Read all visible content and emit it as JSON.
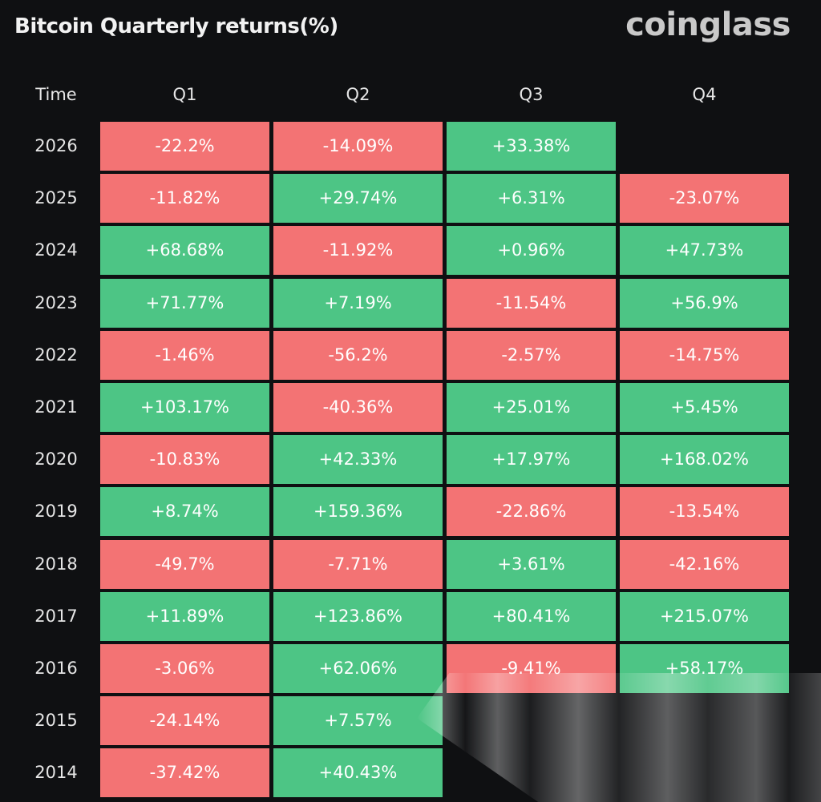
{
  "header": {
    "title": "Bitcoin Quarterly returns(%)",
    "brand": "coinglass"
  },
  "colors": {
    "positive": "#4dc585",
    "negative": "#f37374",
    "background": "#0f1012"
  },
  "chart_data": {
    "type": "table",
    "title": "Bitcoin Quarterly returns(%)",
    "columns": [
      "Time",
      "Q1",
      "Q2",
      "Q3",
      "Q4"
    ],
    "rows": [
      {
        "year": "2026",
        "values": [
          "-22.2%",
          "-14.09%",
          "+33.38%",
          ""
        ]
      },
      {
        "year": "2025",
        "values": [
          "-11.82%",
          "+29.74%",
          "+6.31%",
          "-23.07%"
        ]
      },
      {
        "year": "2024",
        "values": [
          "+68.68%",
          "-11.92%",
          "+0.96%",
          "+47.73%"
        ]
      },
      {
        "year": "2023",
        "values": [
          "+71.77%",
          "+7.19%",
          "-11.54%",
          "+56.9%"
        ]
      },
      {
        "year": "2022",
        "values": [
          "-1.46%",
          "-56.2%",
          "-2.57%",
          "-14.75%"
        ]
      },
      {
        "year": "2021",
        "values": [
          "+103.17%",
          "-40.36%",
          "+25.01%",
          "+5.45%"
        ]
      },
      {
        "year": "2020",
        "values": [
          "-10.83%",
          "+42.33%",
          "+17.97%",
          "+168.02%"
        ]
      },
      {
        "year": "2019",
        "values": [
          "+8.74%",
          "+159.36%",
          "-22.86%",
          "-13.54%"
        ]
      },
      {
        "year": "2018",
        "values": [
          "-49.7%",
          "-7.71%",
          "+3.61%",
          "-42.16%"
        ]
      },
      {
        "year": "2017",
        "values": [
          "+11.89%",
          "+123.86%",
          "+80.41%",
          "+215.07%"
        ]
      },
      {
        "year": "2016",
        "values": [
          "-3.06%",
          "+62.06%",
          "-9.41%",
          "+58.17%"
        ]
      },
      {
        "year": "2015",
        "values": [
          "-24.14%",
          "+7.57%",
          "",
          ""
        ]
      },
      {
        "year": "2014",
        "values": [
          "-37.42%",
          "+40.43%",
          "",
          ""
        ]
      }
    ]
  }
}
